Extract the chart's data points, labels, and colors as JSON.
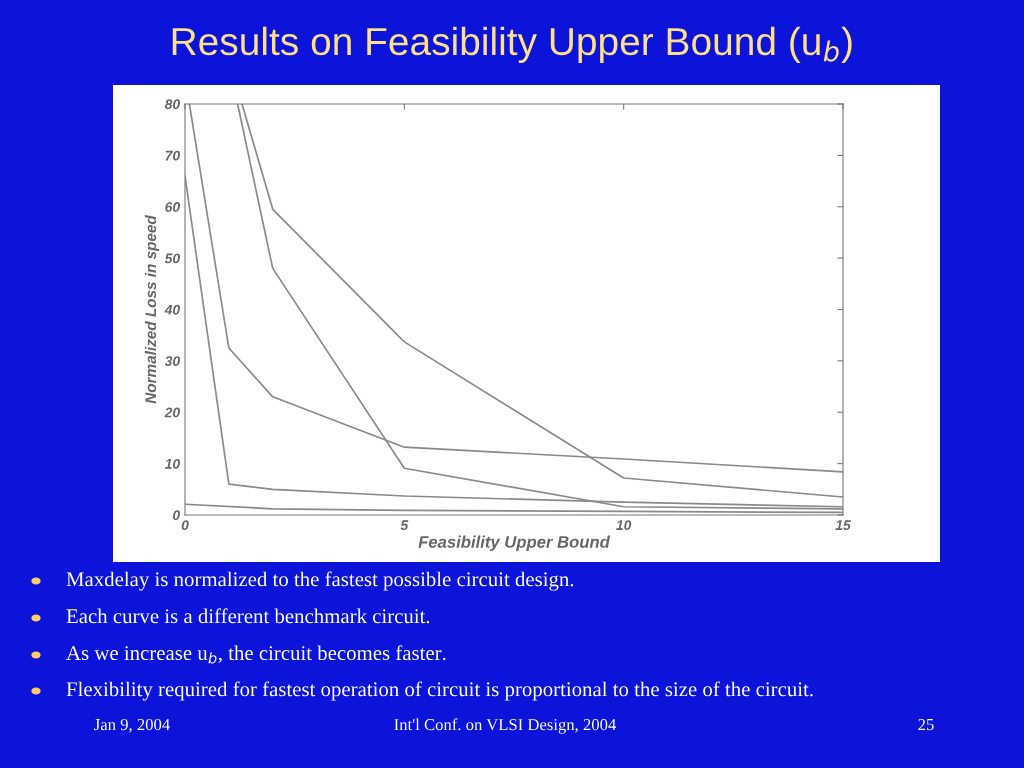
{
  "chart_data": {
    "type": "line",
    "title": "Results on Feasibility Upper Bound (u$_{b}$)",
    "xlabel": "Feasibility Upper Bound",
    "ylabel": "Normalized Loss in speed",
    "series": [
      {
        "color": "#8a8a8a",
        "x": [
          0,
          1,
          2,
          5,
          10,
          15
        ],
        "values": [
          66,
          6,
          5,
          3.7,
          2.5,
          1.6
        ]
      },
      {
        "color": "#8a8a8a",
        "x": [
          0.1,
          1,
          2,
          5,
          10,
          15
        ],
        "values": [
          80,
          32.5,
          23,
          13.2,
          10.9,
          8.4
        ]
      },
      {
        "color": "#8a8a8a",
        "x": [
          1.2,
          2,
          5,
          10,
          15
        ],
        "values": [
          80,
          48,
          9.1,
          1.6,
          1.2
        ]
      },
      {
        "color": "#8a8a8a",
        "x": [
          1.3,
          2,
          5,
          10,
          15
        ],
        "values": [
          80,
          59.5,
          33.7,
          7.2,
          3.5
        ]
      },
      {
        "color": "#8a8a8a",
        "x": [
          0,
          2,
          5,
          10,
          15
        ],
        "values": [
          2.1,
          1.2,
          0.9,
          0.7,
          0.5
        ]
      }
    ],
    "xlim": [
      0,
      15
    ],
    "ylim": [
      0,
      80
    ],
    "xticks": [
      0,
      5,
      10,
      15
    ],
    "yticks": [
      0,
      10,
      20,
      30,
      40,
      50,
      60,
      70,
      80
    ],
    "line_style": "solid",
    "marker": "none",
    "annotations": [
      "Maxdelay is normalized to the fastest possible circuit design.",
      "Each curve is a different benchmark circuit.",
      "As we increase u$_{b}$, the circuit becomes faster.",
      "Flexibility required for fastest operation of circuit is proportional to the size of the circuit.",
      "Jan 9, 2004",
      "Int'l Conf. on VLSI Design, 2004",
      "25"
    ]
  }
}
